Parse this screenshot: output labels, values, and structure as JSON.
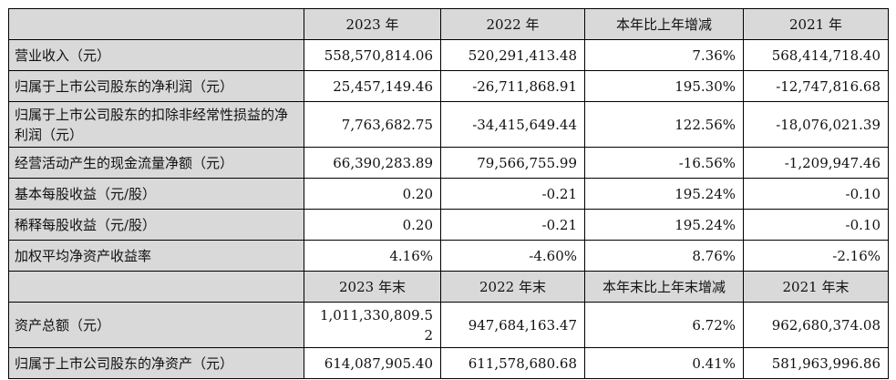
{
  "header": [
    "",
    "2023 年",
    "2022 年",
    "本年比上年增减",
    "2021 年"
  ],
  "rows": [
    {
      "label": "营业收入（元）",
      "v2023": "558,570,814.06",
      "v2022": "520,291,413.48",
      "change": "7.36%",
      "v2021": "568,414,718.40"
    },
    {
      "label": "归属于上市公司股东的净利润（元）",
      "v2023": "25,457,149.46",
      "v2022": "-26,711,868.91",
      "change": "195.30%",
      "v2021": "-12,747,816.68"
    },
    {
      "label": "归属于上市公司股东的扣除非经常性损益的净利润（元）",
      "v2023": "7,763,682.75",
      "v2022": "-34,415,649.44",
      "change": "122.56%",
      "v2021": "-18,076,021.39"
    },
    {
      "label": "经营活动产生的现金流量净额（元）",
      "v2023": "66,390,283.89",
      "v2022": "79,566,755.99",
      "change": "-16.56%",
      "v2021": "-1,209,947.46"
    },
    {
      "label": "基本每股收益（元/股）",
      "v2023": "0.20",
      "v2022": "-0.21",
      "change": "195.24%",
      "v2021": "-0.10"
    },
    {
      "label": "稀释每股收益（元/股）",
      "v2023": "0.20",
      "v2022": "-0.21",
      "change": "195.24%",
      "v2021": "-0.10"
    },
    {
      "label": "加权平均净资产收益率",
      "v2023": "4.16%",
      "v2022": "-4.60%",
      "change": "8.76%",
      "v2021": "-2.16%"
    }
  ],
  "header2": [
    "",
    "2023 年末",
    "2022 年末",
    "本年末比上年末增减",
    "2021 年末"
  ],
  "rows2": [
    {
      "label": "资产总额（元）",
      "v2023": "1,011,330,809.52",
      "v2022": "947,684,163.47",
      "change": "6.72%",
      "v2021": "962,680,374.08"
    },
    {
      "label": "归属于上市公司股东的净资产（元）",
      "v2023": "614,087,905.40",
      "v2022": "611,578,680.68",
      "change": "0.41%",
      "v2021": "581,963,996.86"
    }
  ]
}
